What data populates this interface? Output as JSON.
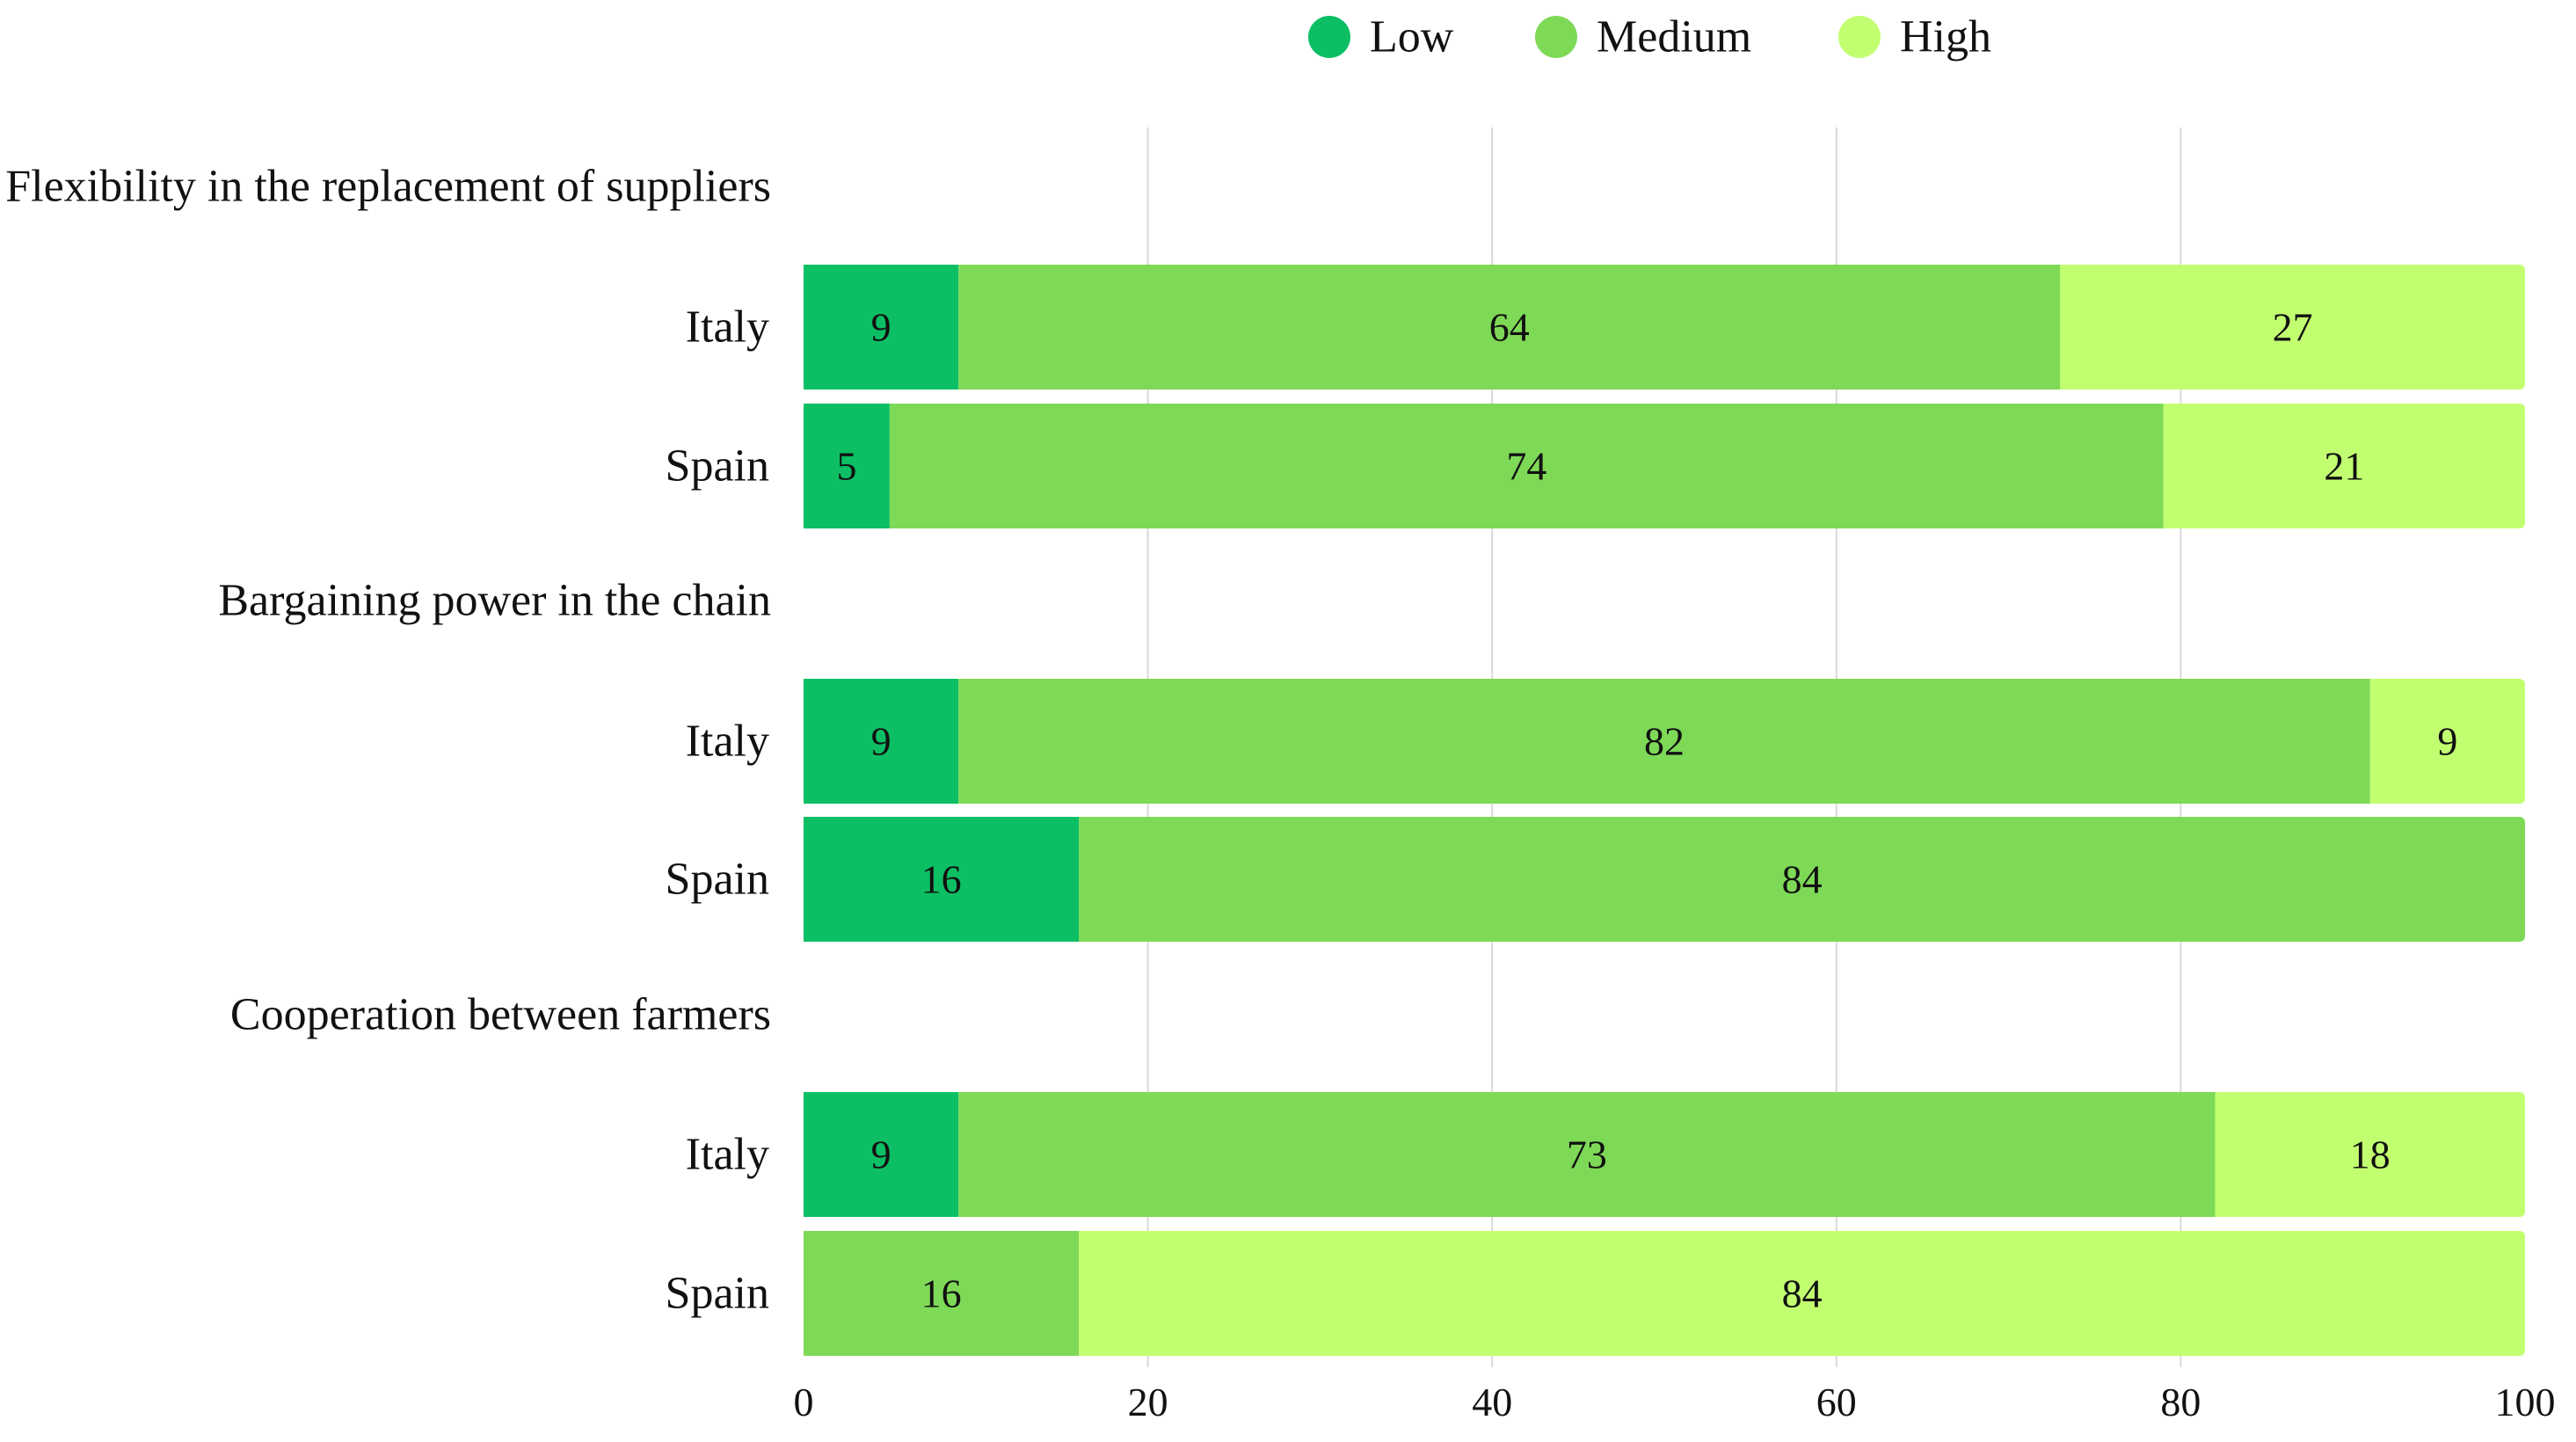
{
  "chart_data": {
    "type": "bar",
    "orientation": "horizontal",
    "stacked": true,
    "title": "",
    "xlabel": "",
    "ylabel": "",
    "xlim": [
      0,
      100
    ],
    "x_ticks": [
      0,
      20,
      40,
      60,
      80,
      100
    ],
    "grid": true,
    "legend_position": "top-center",
    "series": [
      {
        "name": "Low",
        "color": "#0cbf64"
      },
      {
        "name": "Medium",
        "color": "#7ed957"
      },
      {
        "name": "High",
        "color": "#c2ff70"
      }
    ],
    "groups": [
      {
        "label": "Flexibility in the replacement of suppliers",
        "rows": [
          {
            "label": "Italy",
            "segments": [
              {
                "series": "Low",
                "value": 9
              },
              {
                "series": "Medium",
                "value": 64
              },
              {
                "series": "High",
                "value": 27
              }
            ]
          },
          {
            "label": "Spain",
            "segments": [
              {
                "series": "Low",
                "value": 5
              },
              {
                "series": "Medium",
                "value": 74
              },
              {
                "series": "High",
                "value": 21
              }
            ]
          }
        ]
      },
      {
        "label": "Bargaining power in the chain",
        "rows": [
          {
            "label": "Italy",
            "segments": [
              {
                "series": "Low",
                "value": 9
              },
              {
                "series": "Medium",
                "value": 82
              },
              {
                "series": "High",
                "value": 9
              }
            ]
          },
          {
            "label": "Spain",
            "segments": [
              {
                "series": "Low",
                "value": 16
              },
              {
                "series": "Medium",
                "value": 84
              }
            ]
          }
        ]
      },
      {
        "label": "Cooperation between farmers",
        "rows": [
          {
            "label": "Italy",
            "segments": [
              {
                "series": "Low",
                "value": 9
              },
              {
                "series": "Medium",
                "value": 73
              },
              {
                "series": "High",
                "value": 18
              }
            ]
          },
          {
            "label": "Spain",
            "segments": [
              {
                "series": "Medium",
                "value": 16
              },
              {
                "series": "High",
                "value": 84
              }
            ]
          }
        ]
      }
    ]
  }
}
